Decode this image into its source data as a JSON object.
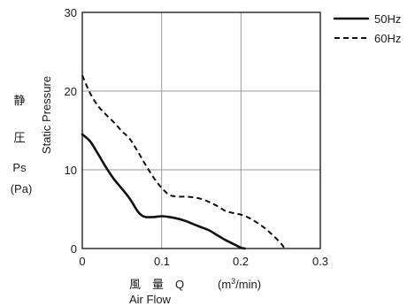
{
  "chart_data": {
    "type": "line",
    "title": "",
    "xlabel_cjk": "風　量　Q",
    "xlabel_unit_pre": "(m",
    "xlabel_unit_sup": "3",
    "xlabel_unit_post": "/min)",
    "xlabel_en": "Air Flow",
    "ylabel_cjk_1": "静",
    "ylabel_cjk_2": "圧",
    "ylabel_sym": "Ps",
    "ylabel_unit": "(Pa)",
    "ylabel_en": "Static Pressure",
    "xlim": [
      0,
      0.3
    ],
    "ylim": [
      0,
      30
    ],
    "xticks": [
      "0",
      "0.1",
      "0.2",
      "0.3"
    ],
    "yticks": [
      "0",
      "10",
      "20",
      "30"
    ],
    "grid": true,
    "legend_position": "top-right",
    "series": [
      {
        "name": "50Hz",
        "style": "solid",
        "x": [
          0,
          0.01,
          0.02,
          0.03,
          0.04,
          0.05,
          0.06,
          0.07,
          0.075,
          0.08,
          0.09,
          0.1,
          0.11,
          0.12,
          0.13,
          0.14,
          0.15,
          0.16,
          0.17,
          0.18,
          0.19,
          0.2,
          0.205
        ],
        "y": [
          14.5,
          13.6,
          12.0,
          10.3,
          8.8,
          7.6,
          6.3,
          4.7,
          4.2,
          4.0,
          4.0,
          4.1,
          4.0,
          3.8,
          3.5,
          3.1,
          2.7,
          2.3,
          1.7,
          1.1,
          0.6,
          0.1,
          0
        ]
      },
      {
        "name": "60Hz",
        "style": "dashed",
        "x": [
          0,
          0.01,
          0.02,
          0.03,
          0.04,
          0.05,
          0.06,
          0.07,
          0.08,
          0.09,
          0.1,
          0.11,
          0.12,
          0.13,
          0.14,
          0.15,
          0.16,
          0.17,
          0.18,
          0.19,
          0.2,
          0.21,
          0.22,
          0.23,
          0.24,
          0.25,
          0.255
        ],
        "y": [
          22.0,
          19.7,
          18.1,
          17.0,
          16.0,
          14.9,
          13.9,
          12.3,
          10.6,
          9.0,
          7.7,
          6.8,
          6.6,
          6.6,
          6.5,
          6.3,
          5.9,
          5.4,
          4.8,
          4.5,
          4.3,
          3.9,
          3.3,
          2.6,
          1.7,
          0.7,
          0
        ]
      }
    ]
  }
}
